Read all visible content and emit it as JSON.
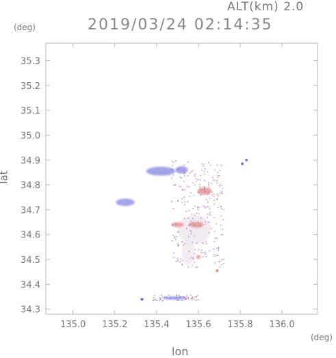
{
  "header": {
    "alt_label": "ALT(km) 2.0",
    "timestamp": "2019/03/24 02:14:35"
  },
  "axes": {
    "lat_unit": "(deg)",
    "lon_unit": "(deg)",
    "lat_label": "lat",
    "lon_label": "lon",
    "lat_ticks": [
      "35.3",
      "35.2",
      "35.1",
      "35.0",
      "34.9",
      "34.8",
      "34.7",
      "34.6",
      "34.5",
      "34.4",
      "34.3"
    ],
    "lon_ticks": [
      "135.0",
      "135.2",
      "135.4",
      "135.6",
      "135.8",
      "136.0"
    ]
  },
  "chart_data": {
    "type": "heatmap",
    "xlabel": "lon",
    "ylabel": "lat",
    "xlim": [
      134.87,
      136.17
    ],
    "ylim": [
      34.28,
      35.37
    ],
    "grid": false,
    "colors": {
      "negative": "#9a9ae8",
      "positive": "#e89a9a",
      "neutral": "#f0e8f0",
      "axis": "#b8b8b8"
    },
    "blobs": [
      {
        "lon": 135.42,
        "lat": 34.855,
        "rx_deg": 0.07,
        "ry_deg": 0.018,
        "sign": "negative"
      },
      {
        "lon": 135.52,
        "lat": 34.86,
        "rx_deg": 0.03,
        "ry_deg": 0.015,
        "sign": "negative"
      },
      {
        "lon": 135.25,
        "lat": 34.73,
        "rx_deg": 0.045,
        "ry_deg": 0.015,
        "sign": "negative"
      },
      {
        "lon": 135.63,
        "lat": 34.775,
        "rx_deg": 0.035,
        "ry_deg": 0.015,
        "sign": "positive"
      },
      {
        "lon": 135.58,
        "lat": 34.62,
        "rx_deg": 0.08,
        "ry_deg": 0.06,
        "sign": "neutral"
      },
      {
        "lon": 135.59,
        "lat": 34.64,
        "rx_deg": 0.035,
        "ry_deg": 0.012,
        "sign": "positive"
      },
      {
        "lon": 135.5,
        "lat": 34.64,
        "rx_deg": 0.03,
        "ry_deg": 0.01,
        "sign": "positive"
      },
      {
        "lon": 135.55,
        "lat": 34.53,
        "rx_deg": 0.03,
        "ry_deg": 0.05,
        "sign": "neutral"
      },
      {
        "lon": 135.6,
        "lat": 34.51,
        "rx_deg": 0.012,
        "ry_deg": 0.008,
        "sign": "positive"
      },
      {
        "lon": 135.49,
        "lat": 34.345,
        "rx_deg": 0.06,
        "ry_deg": 0.007,
        "sign": "negative"
      }
    ]
  }
}
